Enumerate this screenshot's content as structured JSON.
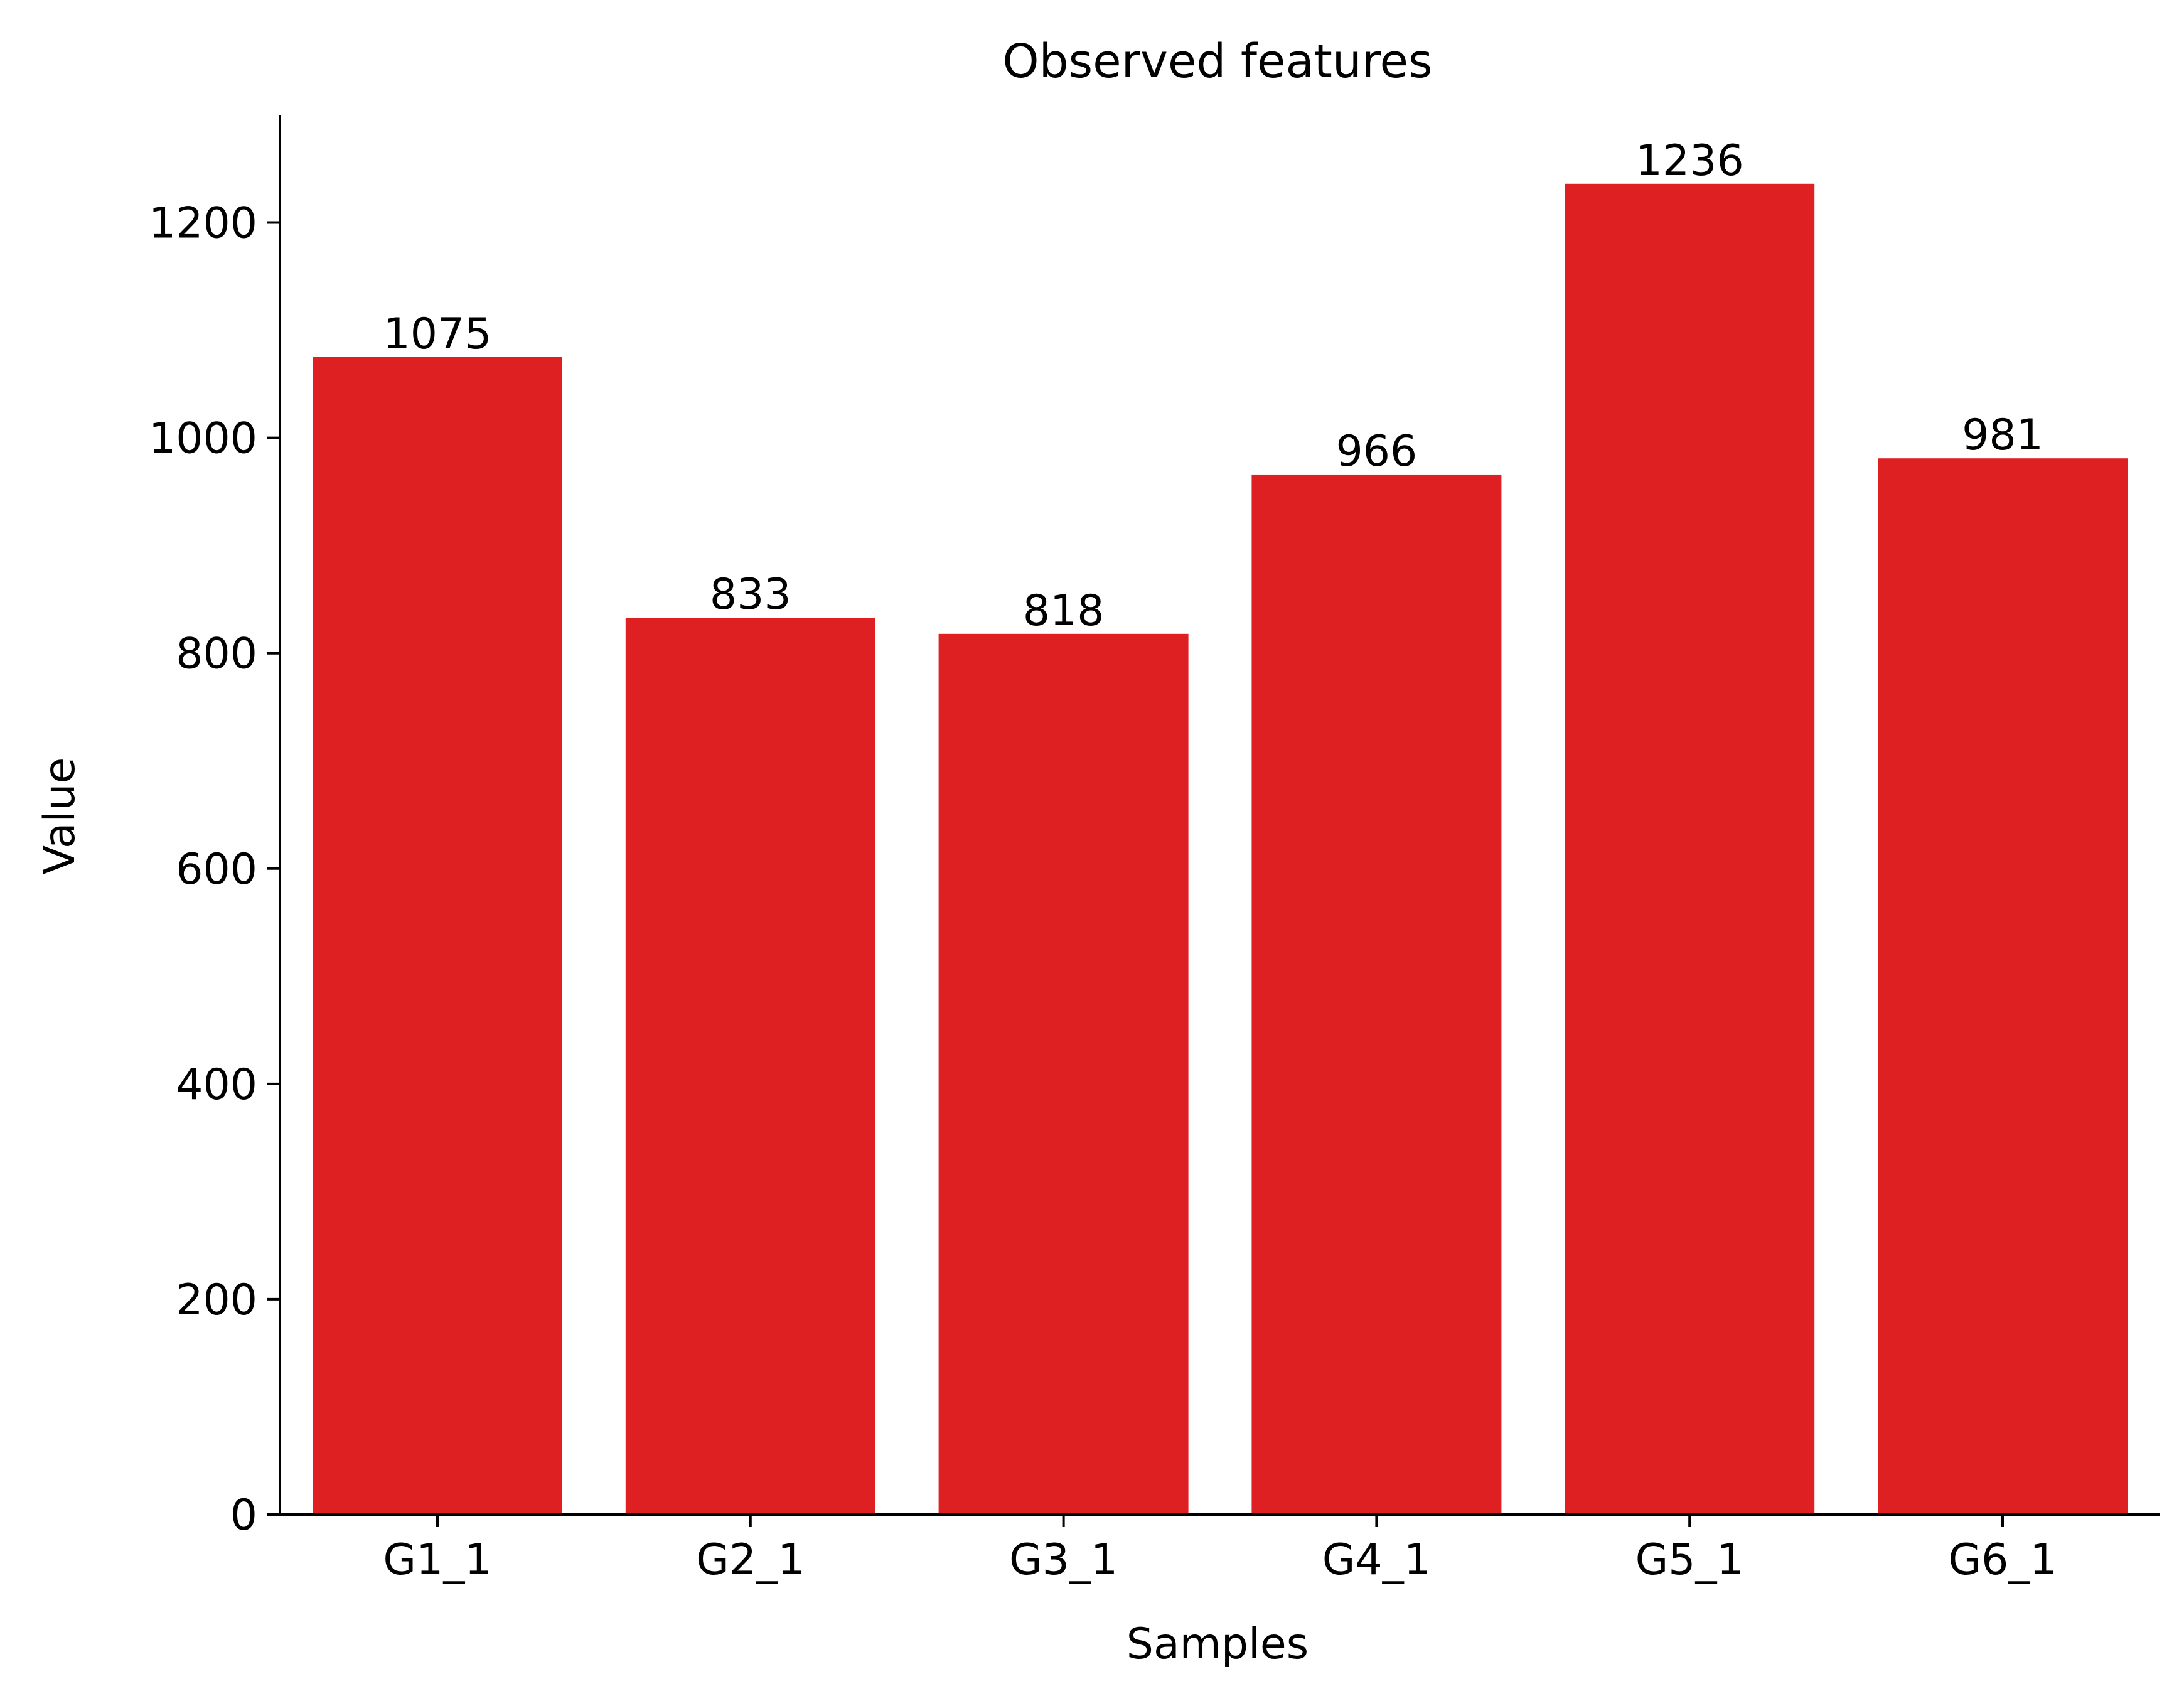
{
  "chart_data": {
    "type": "bar",
    "title": "Observed features",
    "xlabel": "Samples",
    "ylabel": "Value",
    "categories": [
      "G1_1",
      "G2_1",
      "G3_1",
      "G4_1",
      "G5_1",
      "G6_1"
    ],
    "values": [
      1075,
      833,
      818,
      966,
      1236,
      981
    ],
    "data_labels": [
      "1075",
      "833",
      "818",
      "966",
      "1236",
      "981"
    ],
    "yticks": [
      0,
      200,
      400,
      600,
      800,
      1000,
      1200
    ],
    "ylim": [
      0,
      1300
    ],
    "grid": false,
    "legend": "none",
    "colors": {
      "bar": "#df2023",
      "axis": "#000000"
    }
  }
}
